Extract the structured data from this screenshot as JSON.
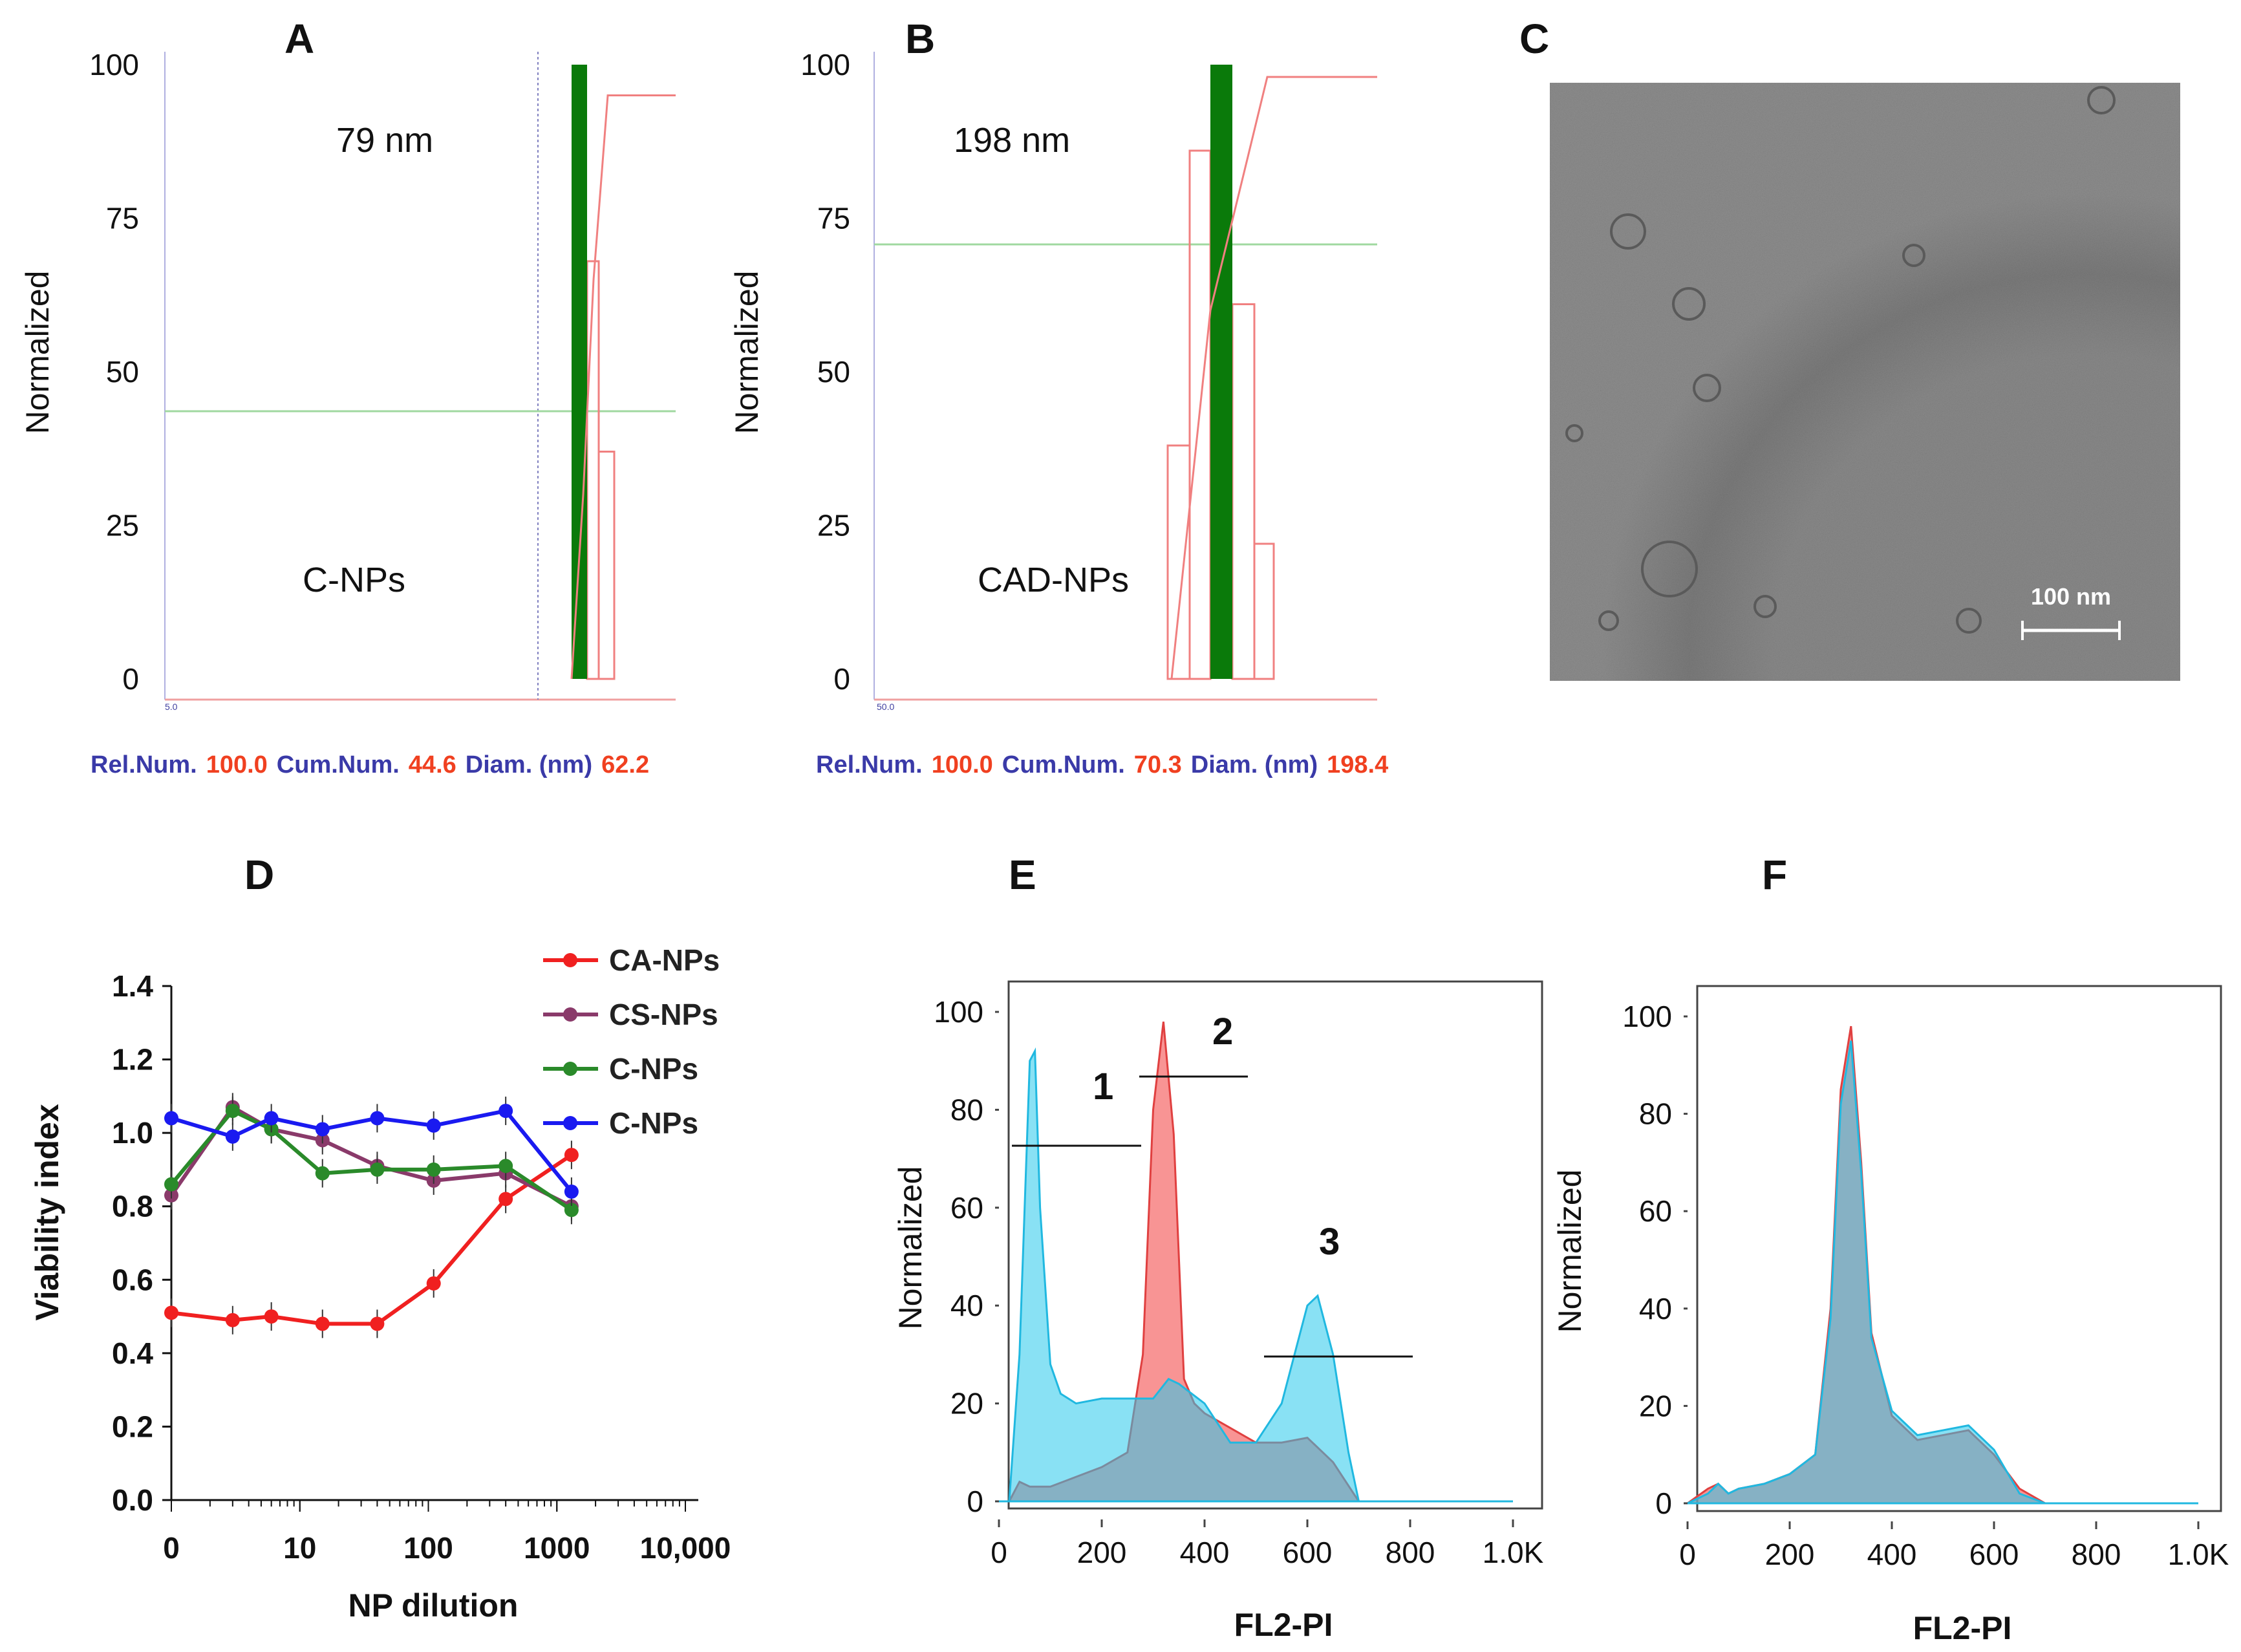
{
  "panels": {
    "A": {
      "letter": "A",
      "ylabel": "Normalized",
      "annotation": "79 nm",
      "sample": "C-NPs",
      "yticks": [
        "100",
        "75",
        "50",
        "25",
        "0"
      ],
      "axis_min_label": "5.0",
      "footer": {
        "rel_label": "Rel.Num.",
        "rel_value": "100.0",
        "cum_label": "Cum.Num.",
        "cum_value": "44.6",
        "diam_label": "Diam. (nm)",
        "diam_value": "62.2"
      }
    },
    "B": {
      "letter": "B",
      "ylabel": "Normalized",
      "annotation": "198 nm",
      "sample": "CAD-NPs",
      "yticks": [
        "100",
        "75",
        "50",
        "25",
        "0"
      ],
      "axis_min_label": "50.0",
      "footer": {
        "rel_label": "Rel.Num.",
        "rel_value": "100.0",
        "cum_label": "Cum.Num.",
        "cum_value": "70.3",
        "diam_label": "Diam. (nm)",
        "diam_value": "198.4"
      }
    },
    "C": {
      "letter": "C",
      "scalebar": "100 nm"
    },
    "D": {
      "letter": "D",
      "xlabel": "NP dilution",
      "ylabel": "Viability index",
      "yticks": [
        "1.4",
        "1.2",
        "1.0",
        "0.8",
        "0.6",
        "0.4",
        "0.2",
        "0.0"
      ],
      "xticks": [
        "0",
        "10",
        "100",
        "1000",
        "10,000"
      ]
    },
    "E": {
      "letter": "E",
      "xlabel": "FL2-PI",
      "ylabel": "Normalized",
      "yticks": [
        "100",
        "80",
        "60",
        "40",
        "20",
        "0"
      ],
      "xticks": [
        "0",
        "200",
        "400",
        "600",
        "800",
        "1.0K"
      ],
      "gates": [
        "1",
        "2",
        "3"
      ]
    },
    "F": {
      "letter": "F",
      "xlabel": "FL2-PI",
      "ylabel": "Normalized",
      "yticks": [
        "100",
        "80",
        "60",
        "40",
        "20",
        "0"
      ],
      "xticks": [
        "0",
        "200",
        "400",
        "600",
        "800",
        "1.0K"
      ]
    }
  },
  "colors": {
    "bar": "#0a7a0a",
    "red": "#f02020",
    "purple": "#8a3a6a",
    "green": "#2a8a2a",
    "blue": "#1a1af0",
    "cyan": "#20c8ec",
    "pink": "#f06060",
    "footer_blue": "#3a3aa8",
    "footer_red": "#f04020"
  },
  "chart_data": [
    {
      "type": "bar",
      "panel": "A",
      "title": "C-NPs",
      "ylabel": "Normalized",
      "ylim": [
        0,
        100
      ],
      "peak_diameter_nm": 79,
      "dominant_bar": 100,
      "side_bars": [
        68,
        37
      ],
      "cumulative_plateau": 95,
      "cumulative_marker": 44.6
    },
    {
      "type": "bar",
      "panel": "B",
      "title": "CAD-NPs",
      "ylabel": "Normalized",
      "ylim": [
        0,
        100
      ],
      "peak_diameter_nm": 198,
      "dominant_bar": 100,
      "side_bars": [
        38,
        86,
        61,
        22
      ],
      "cumulative_plateau": 98,
      "cumulative_marker": 70.3
    },
    {
      "type": "line",
      "panel": "D",
      "xlabel": "NP dilution",
      "ylabel": "Viability index",
      "xscale": "log",
      "ylim": [
        0,
        1.4
      ],
      "series": [
        {
          "name": "CA-NPs",
          "color": "#f02020",
          "values": [
            0.51,
            0.49,
            0.5,
            0.48,
            0.48,
            0.59,
            0.82,
            0.94
          ]
        },
        {
          "name": "CS-NPs",
          "color": "#8a3a6a",
          "values": [
            0.83,
            1.07,
            1.01,
            0.98,
            0.91,
            0.87,
            0.89,
            0.8
          ]
        },
        {
          "name": "C-NPs",
          "color": "#2a8a2a",
          "values": [
            0.86,
            1.06,
            1.01,
            0.89,
            0.9,
            0.9,
            0.91,
            0.79
          ]
        },
        {
          "name": "C-NPs",
          "color": "#1a1af0",
          "values": [
            1.04,
            0.99,
            1.04,
            1.01,
            1.04,
            1.02,
            1.06,
            0.84
          ]
        }
      ],
      "x": [
        1,
        3,
        6,
        15,
        40,
        110,
        400,
        1300
      ]
    },
    {
      "type": "area",
      "panel": "E",
      "xlabel": "FL2-PI",
      "ylabel": "Normalized",
      "xlim": [
        0,
        1000
      ],
      "ylim": [
        0,
        100
      ],
      "series": [
        {
          "name": "red",
          "x": [
            20,
            40,
            60,
            80,
            100,
            150,
            200,
            250,
            280,
            300,
            320,
            340,
            360,
            380,
            400,
            450,
            500,
            550,
            600,
            650,
            700
          ],
          "values": [
            0,
            4,
            3,
            3,
            3,
            5,
            7,
            10,
            30,
            80,
            98,
            75,
            25,
            20,
            18,
            15,
            12,
            12,
            13,
            8,
            0
          ]
        },
        {
          "name": "cyan",
          "x": [
            20,
            40,
            60,
            70,
            80,
            100,
            120,
            150,
            200,
            250,
            300,
            330,
            350,
            400,
            450,
            500,
            550,
            600,
            620,
            650,
            680,
            700
          ],
          "values": [
            0,
            30,
            90,
            92,
            60,
            28,
            22,
            20,
            21,
            21,
            21,
            25,
            24,
            20,
            12,
            12,
            20,
            40,
            42,
            30,
            10,
            0
          ]
        }
      ]
    },
    {
      "type": "area",
      "panel": "F",
      "xlabel": "FL2-PI",
      "ylabel": "Normalized",
      "xlim": [
        0,
        1000
      ],
      "ylim": [
        0,
        100
      ],
      "series": [
        {
          "name": "red",
          "x": [
            0,
            40,
            60,
            80,
            100,
            150,
            200,
            250,
            280,
            300,
            320,
            340,
            360,
            400,
            450,
            500,
            550,
            600,
            650,
            700
          ],
          "values": [
            0,
            3,
            4,
            2,
            3,
            4,
            6,
            10,
            40,
            85,
            98,
            70,
            35,
            18,
            13,
            14,
            15,
            10,
            3,
            0
          ]
        },
        {
          "name": "cyan",
          "x": [
            0,
            40,
            60,
            80,
            100,
            150,
            200,
            250,
            280,
            300,
            320,
            340,
            360,
            400,
            450,
            500,
            550,
            600,
            650,
            700
          ],
          "values": [
            0,
            2,
            4,
            2,
            3,
            4,
            6,
            10,
            38,
            82,
            95,
            68,
            34,
            19,
            14,
            15,
            16,
            11,
            2,
            0
          ]
        }
      ]
    }
  ]
}
